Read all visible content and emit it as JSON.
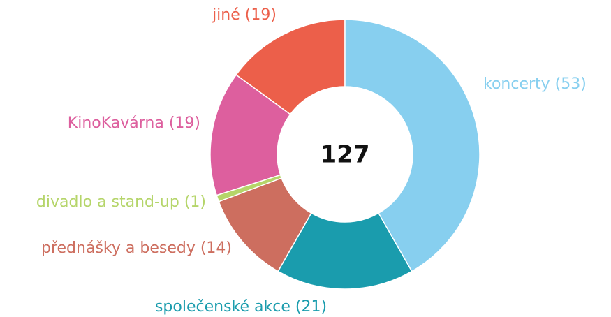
{
  "chart_data": {
    "type": "donut",
    "values": [
      53,
      21,
      14,
      1,
      19,
      19
    ],
    "value_labels": [
      "koncerty (53)",
      "společenské akce (21)",
      "přednášky a besedy (14)",
      "divadlo a stand-up (1)",
      "KinoKavárna (19)",
      "jiné (19)"
    ],
    "colors": [
      "#87cfef",
      "#1a9cad",
      "#cd6e5f",
      "#b5d56a",
      "#dd5f9e",
      "#ec5f4a"
    ],
    "total": 127
  }
}
